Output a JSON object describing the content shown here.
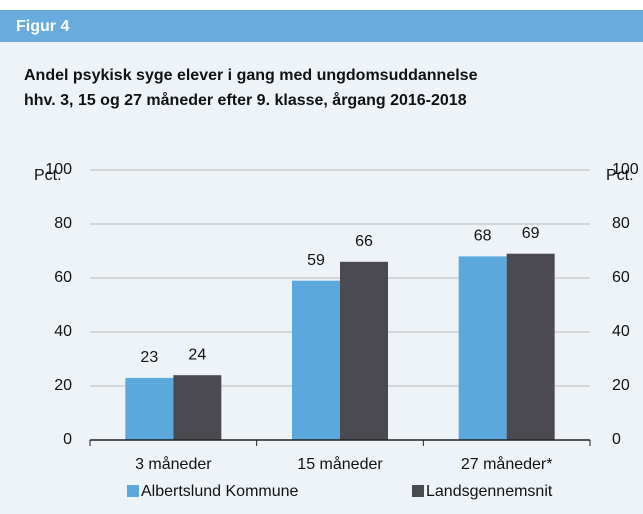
{
  "header": {
    "label": "Figur 4"
  },
  "chart_data": {
    "type": "bar",
    "title": [
      "Andel psykisk syge elever i gang med ungdomsuddannelse",
      "hhv. 3, 15 og 27 måneder efter 9. klasse, årgang 2016-2018"
    ],
    "y_label": "Pct.",
    "y2_label": "Pct.",
    "categories": [
      "3 måneder",
      "15 måneder",
      "27 måneder*"
    ],
    "series": [
      {
        "name": "Albertslund Kommune",
        "color": "#5ba8dc",
        "values": [
          23,
          59,
          68
        ]
      },
      {
        "name": "Landsgennemsnit",
        "color": "#4a4a50",
        "values": [
          24,
          66,
          69
        ]
      }
    ],
    "ylim": [
      0,
      100
    ],
    "yticks": [
      0,
      20,
      40,
      60,
      80,
      100
    ],
    "y2lim": [
      0,
      100
    ],
    "y2ticks": [
      0,
      20,
      40,
      60,
      80,
      100
    ],
    "grid": true,
    "legend": "bottom"
  }
}
